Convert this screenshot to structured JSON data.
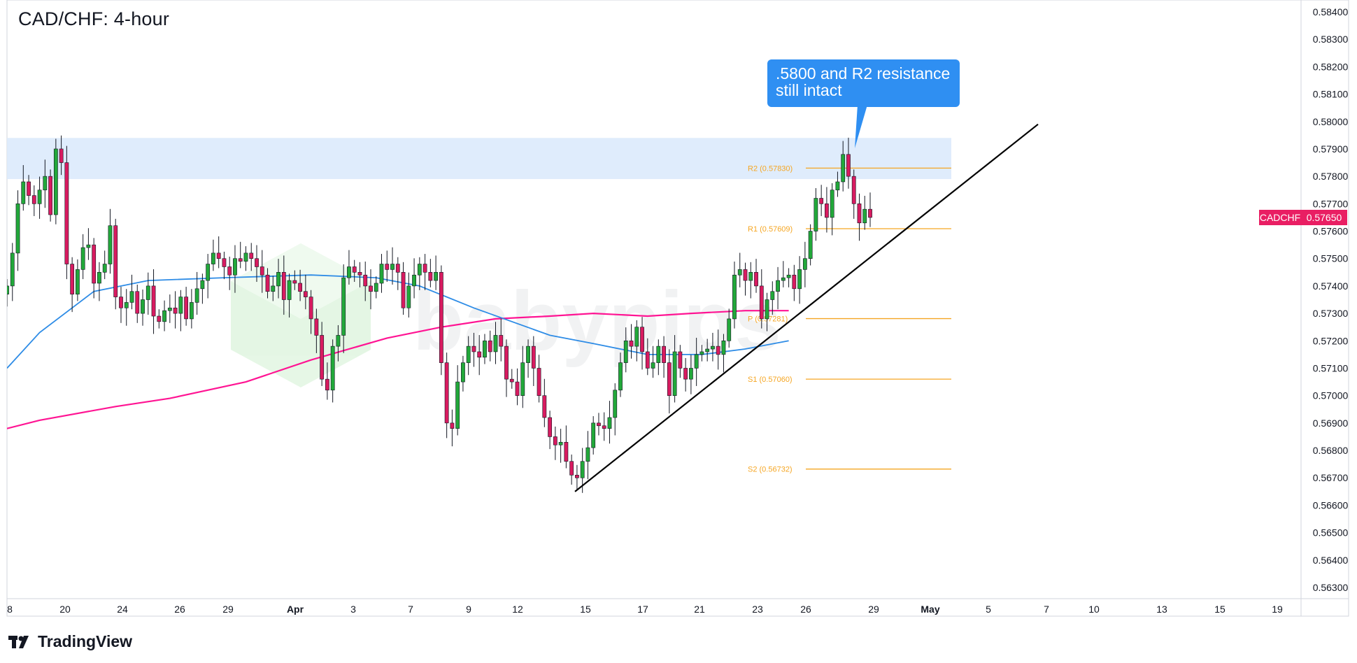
{
  "title": "CAD/CHF: 4-hour",
  "brand": "TradingView",
  "watermark": "babypips",
  "callout": {
    "line1": ".5800 and R2 resistance",
    "line2": "still intact"
  },
  "symbol_badge": {
    "label": "CADCHF",
    "value": "0.57650"
  },
  "colors": {
    "up": "#22a83a",
    "down": "#d81b60",
    "ema_fast": "#2e8ce6",
    "ema_slow": "#ff1493",
    "pivot": "#f5a623",
    "zone": "#dbeafc",
    "callout": "#2f8ff2",
    "badge": "#e91e63"
  },
  "chart_data": {
    "type": "candlestick",
    "symbol": "CADCHF",
    "timeframe": "4-hour",
    "y_axis": {
      "range": [
        0.5622,
        0.5842
      ],
      "ticks": [
        "0.58400",
        "0.58300",
        "0.58200",
        "0.58100",
        "0.58000",
        "0.57900",
        "0.57800",
        "0.57700",
        "0.57600",
        "0.57500",
        "0.57400",
        "0.57300",
        "0.57200",
        "0.57100",
        "0.57000",
        "0.56900",
        "0.56800",
        "0.56700",
        "0.56600",
        "0.56500",
        "0.56400",
        "0.56300"
      ]
    },
    "x_axis": {
      "ticks": [
        "8",
        "20",
        "24",
        "26",
        "29",
        "Apr",
        "3",
        "7",
        "9",
        "12",
        "15",
        "17",
        "21",
        "23",
        "26",
        "29",
        "May",
        "5",
        "7",
        "10",
        "13",
        "15",
        "19"
      ]
    },
    "pivot_levels": [
      {
        "name": "R2",
        "label": "R2 (0.57830)",
        "value": 0.5783
      },
      {
        "name": "R1",
        "label": "R1 (0.57609)",
        "value": 0.57609
      },
      {
        "name": "P",
        "label": "P (0.57281)",
        "value": 0.57281
      },
      {
        "name": "S1",
        "label": "S1 (0.57060)",
        "value": 0.5706
      },
      {
        "name": "S2",
        "label": "S2 (0.56732)",
        "value": 0.56732
      }
    ],
    "resistance_zone": [
      0.5779,
      0.5794
    ],
    "trendline": [
      [
        0.0,
        0.5665
      ],
      [
        1.0,
        0.5799
      ]
    ],
    "ma_fast": [
      [
        0,
        0.571
      ],
      [
        6,
        0.5723
      ],
      [
        16,
        0.5738
      ],
      [
        26,
        0.5742
      ],
      [
        40,
        0.5743
      ],
      [
        56,
        0.5744
      ],
      [
        68,
        0.5743
      ],
      [
        76,
        0.574
      ],
      [
        86,
        0.5732
      ],
      [
        100,
        0.5722
      ],
      [
        108,
        0.5719
      ],
      [
        118,
        0.5715
      ],
      [
        128,
        0.5715
      ],
      [
        136,
        0.5717
      ],
      [
        144,
        0.572
      ]
    ],
    "ma_slow": [
      [
        0,
        0.5688
      ],
      [
        6,
        0.5691
      ],
      [
        20,
        0.5696
      ],
      [
        30,
        0.5699
      ],
      [
        44,
        0.5705
      ],
      [
        56,
        0.5713
      ],
      [
        70,
        0.5721
      ],
      [
        80,
        0.5725
      ],
      [
        90,
        0.5728
      ],
      [
        100,
        0.5729
      ],
      [
        108,
        0.573
      ],
      [
        118,
        0.5729
      ],
      [
        126,
        0.573
      ],
      [
        136,
        0.5731
      ],
      [
        144,
        0.5731
      ]
    ],
    "candles_close": [
      0.574,
      0.5752,
      0.577,
      0.5778,
      0.5773,
      0.577,
      0.5775,
      0.578,
      0.5766,
      0.579,
      0.5785,
      0.5748,
      0.5737,
      0.5746,
      0.5754,
      0.5755,
      0.5741,
      0.5745,
      0.5748,
      0.5762,
      0.5736,
      0.5732,
      0.5734,
      0.5738,
      0.573,
      0.5735,
      0.574,
      0.5729,
      0.5727,
      0.5731,
      0.5732,
      0.573,
      0.5736,
      0.5728,
      0.5734,
      0.5739,
      0.5742,
      0.5748,
      0.5752,
      0.575,
      0.5747,
      0.5744,
      0.575,
      0.5749,
      0.5752,
      0.575,
      0.5747,
      0.5744,
      0.5738,
      0.574,
      0.5745,
      0.5735,
      0.5742,
      0.5741,
      0.5738,
      0.5736,
      0.5728,
      0.5722,
      0.5706,
      0.5702,
      0.5718,
      0.5722,
      0.5743,
      0.5747,
      0.5745,
      0.5744,
      0.574,
      0.5738,
      0.5741,
      0.5748,
      0.5746,
      0.5748,
      0.5745,
      0.5732,
      0.574,
      0.5744,
      0.5748,
      0.5745,
      0.5742,
      0.5745,
      0.5712,
      0.569,
      0.5688,
      0.5705,
      0.5712,
      0.5718,
      0.5716,
      0.5714,
      0.572,
      0.5716,
      0.5722,
      0.5718,
      0.5706,
      0.5705,
      0.57,
      0.5712,
      0.5718,
      0.571,
      0.57,
      0.5692,
      0.5685,
      0.5682,
      0.5683,
      0.5676,
      0.5671,
      0.567,
      0.5676,
      0.5681,
      0.569,
      0.5689,
      0.5688,
      0.5692,
      0.5702,
      0.5712,
      0.572,
      0.5718,
      0.5725,
      0.5716,
      0.571,
      0.5712,
      0.5718,
      0.5712,
      0.57,
      0.5716,
      0.571,
      0.5706,
      0.571,
      0.5715,
      0.5716,
      0.5717,
      0.5718,
      0.5715,
      0.572,
      0.5728,
      0.5744,
      0.5746,
      0.5742,
      0.5745,
      0.574,
      0.5728,
      0.5735,
      0.5738,
      0.5742,
      0.5743,
      0.5744,
      0.5739,
      0.5746,
      0.575,
      0.576,
      0.5772,
      0.577,
      0.5765,
      0.5775,
      0.5778,
      0.5788,
      0.578,
      0.577,
      0.5763,
      0.5768,
      0.5765
    ]
  }
}
